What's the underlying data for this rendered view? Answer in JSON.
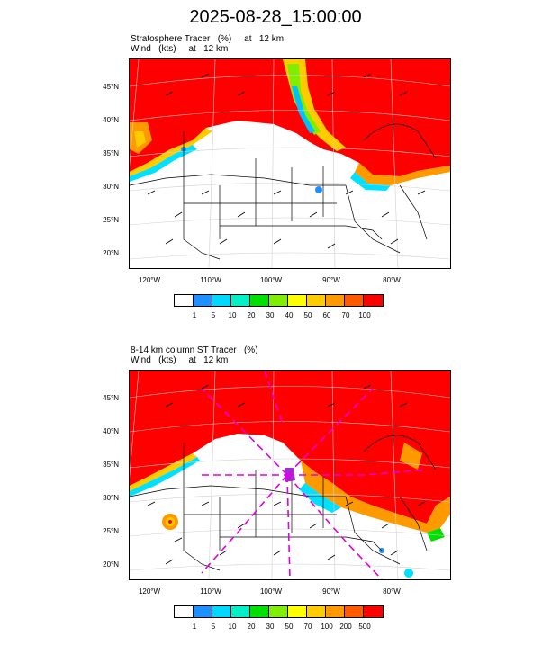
{
  "title": "2025-08-28_15:00:00",
  "panels": [
    {
      "subtitle_line1": "Stratosphere Tracer   (%)     at   12 km",
      "subtitle_line2": "Wind   (kts)     at   12 km",
      "lat_labels": [
        "45°N",
        "40°N",
        "35°N",
        "30°N",
        "25°N",
        "20°N"
      ],
      "lon_labels": [
        "120°W",
        "110°W",
        "100°W",
        "90°W",
        "80°W"
      ],
      "colorbar_labels": [
        "1",
        "5",
        "10",
        "20",
        "30",
        "40",
        "50",
        "60",
        "70",
        "100"
      ]
    },
    {
      "subtitle_line1": "8-14 km column ST Tracer   (%)",
      "subtitle_line2": "Wind   (kts)     at   12 km",
      "lat_labels": [
        "45°N",
        "40°N",
        "35°N",
        "30°N",
        "25°N",
        "20°N"
      ],
      "lon_labels": [
        "120°W",
        "110°W",
        "100°W",
        "90°W",
        "80°W"
      ],
      "colorbar_labels": [
        "1",
        "5",
        "10",
        "20",
        "30",
        "50",
        "70",
        "100",
        "200",
        "500"
      ]
    }
  ],
  "colorbar_colors": [
    "#ffffff",
    "#1e90ff",
    "#00d8ff",
    "#00f0c8",
    "#00e000",
    "#80ee00",
    "#ffff00",
    "#ffcc00",
    "#ff9900",
    "#ff5a00",
    "#ff0000"
  ],
  "colors": {
    "tracer_high": "#ff0000",
    "contour_dash": "#e000e0"
  }
}
